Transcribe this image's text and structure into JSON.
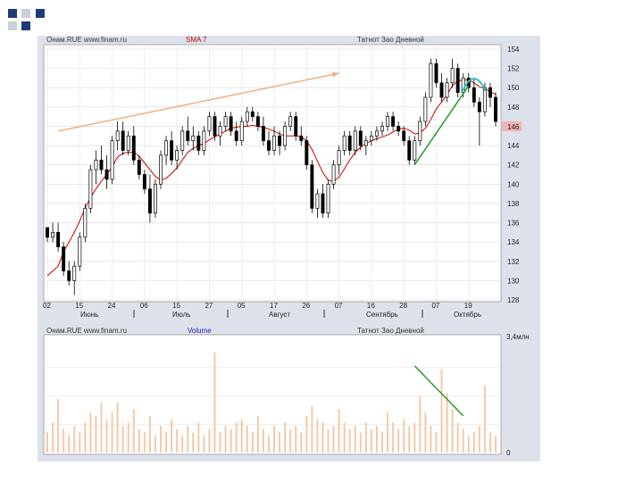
{
  "top_panel": {
    "source": "Онам.RUE  www.finam.ru",
    "indicator": "SMA 7",
    "title": "Татнот Зао Дневной",
    "price_marker": "146"
  },
  "bottom_panel": {
    "source": "Онам.RUE  www.finam.ru",
    "indicator": "Volume",
    "title": "Татнот Зао Дневной",
    "ytop_label": "3,4млн",
    "ybottom_label": "0"
  },
  "colors": {
    "up": "#ffffff",
    "down": "#000000",
    "sma": "#cc0000",
    "volume": "#f5c9a8",
    "trend_up": "#f0b080",
    "trend_green": "#2a9a2a",
    "circle": "#30c0c0",
    "indicator_text": "#c00000",
    "volume_text": "#2020c0",
    "marker_bg": "#f0b4b4",
    "deco": "#1f3a7a"
  },
  "chart_data": [
    {
      "type": "candlestick",
      "yticks": [
        "154",
        "152",
        "150",
        "148",
        "146",
        "144",
        "142",
        "140",
        "138",
        "136",
        "134",
        "132",
        "130",
        "128"
      ],
      "ylim": [
        128,
        154
      ],
      "day_labels": [
        "02",
        "15",
        "24",
        "06",
        "15",
        "27",
        "05",
        "17",
        "26",
        "07",
        "16",
        "28",
        "07",
        "19"
      ],
      "month_labels": [
        "Июнь",
        "Июль",
        "Август",
        "Сентябрь",
        "Октябрь"
      ],
      "series_sma_label": "SMA 7",
      "candles": [
        [
          135.5,
          135.5,
          134.0,
          134.5
        ],
        [
          134.5,
          136.0,
          134.0,
          135.0
        ],
        [
          135.0,
          136.0,
          133.0,
          133.5
        ],
        [
          133.5,
          134.0,
          130.5,
          131.0
        ],
        [
          131.0,
          132.0,
          129.5,
          130.0
        ],
        [
          130.0,
          132.0,
          128.5,
          131.5
        ],
        [
          131.5,
          135.0,
          131.0,
          134.5
        ],
        [
          134.5,
          138.0,
          134.0,
          137.5
        ],
        [
          137.5,
          142.0,
          137.0,
          141.5
        ],
        [
          141.5,
          143.5,
          140.0,
          142.5
        ],
        [
          142.5,
          144.0,
          141.0,
          141.5
        ],
        [
          141.5,
          143.0,
          139.5,
          140.5
        ],
        [
          140.5,
          145.0,
          140.0,
          144.5
        ],
        [
          144.5,
          146.5,
          143.5,
          145.5
        ],
        [
          145.5,
          146.5,
          143.0,
          143.5
        ],
        [
          143.5,
          145.5,
          143.0,
          145.0
        ],
        [
          145.0,
          146.0,
          142.0,
          142.5
        ],
        [
          142.5,
          143.0,
          140.5,
          141.0
        ],
        [
          141.0,
          141.5,
          139.0,
          139.5
        ],
        [
          139.5,
          141.0,
          136.0,
          137.0
        ],
        [
          137.0,
          140.5,
          136.5,
          140.0
        ],
        [
          140.0,
          143.5,
          139.5,
          143.0
        ],
        [
          143.0,
          145.0,
          142.0,
          144.5
        ],
        [
          144.5,
          145.5,
          142.0,
          142.5
        ],
        [
          142.5,
          144.0,
          141.5,
          143.5
        ],
        [
          143.5,
          146.0,
          143.0,
          145.5
        ],
        [
          145.5,
          147.0,
          144.0,
          144.5
        ],
        [
          144.5,
          146.0,
          143.5,
          145.0
        ],
        [
          145.0,
          145.5,
          143.0,
          143.5
        ],
        [
          143.5,
          146.0,
          143.0,
          145.5
        ],
        [
          145.5,
          147.5,
          145.0,
          147.0
        ],
        [
          147.0,
          147.5,
          144.5,
          145.0
        ],
        [
          145.0,
          146.5,
          144.0,
          146.0
        ],
        [
          146.0,
          147.5,
          145.5,
          147.0
        ],
        [
          147.0,
          147.5,
          145.0,
          145.5
        ],
        [
          145.5,
          146.5,
          144.0,
          144.5
        ],
        [
          144.5,
          147.0,
          144.0,
          146.5
        ],
        [
          146.5,
          148.0,
          146.0,
          147.5
        ],
        [
          147.5,
          148.0,
          146.5,
          147.0
        ],
        [
          147.0,
          147.5,
          145.5,
          146.0
        ],
        [
          146.0,
          147.0,
          144.0,
          144.5
        ],
        [
          144.5,
          145.5,
          143.0,
          143.5
        ],
        [
          143.5,
          146.0,
          143.0,
          145.0
        ],
        [
          145.0,
          145.5,
          143.0,
          144.0
        ],
        [
          144.0,
          146.5,
          143.5,
          146.0
        ],
        [
          146.0,
          147.5,
          145.5,
          147.0
        ],
        [
          147.0,
          147.5,
          144.5,
          145.0
        ],
        [
          145.0,
          146.0,
          144.0,
          144.5
        ],
        [
          144.5,
          145.0,
          141.5,
          142.0
        ],
        [
          142.0,
          142.5,
          137.0,
          137.5
        ],
        [
          137.5,
          139.5,
          136.5,
          139.0
        ],
        [
          139.0,
          140.0,
          136.5,
          137.0
        ],
        [
          137.0,
          140.5,
          136.5,
          140.0
        ],
        [
          140.0,
          142.5,
          139.5,
          142.0
        ],
        [
          142.0,
          144.0,
          141.0,
          143.5
        ],
        [
          143.5,
          145.5,
          143.0,
          145.0
        ],
        [
          145.0,
          145.5,
          143.0,
          143.5
        ],
        [
          143.5,
          146.0,
          143.0,
          145.5
        ],
        [
          145.5,
          146.0,
          143.5,
          144.0
        ],
        [
          144.0,
          145.0,
          143.0,
          144.5
        ],
        [
          144.5,
          145.5,
          144.0,
          145.0
        ],
        [
          145.0,
          146.0,
          144.5,
          145.5
        ],
        [
          145.5,
          146.5,
          145.0,
          146.0
        ],
        [
          146.0,
          147.5,
          145.5,
          147.0
        ],
        [
          147.0,
          147.5,
          145.5,
          146.0
        ],
        [
          146.0,
          146.5,
          145.0,
          145.5
        ],
        [
          145.5,
          146.0,
          144.0,
          144.5
        ],
        [
          144.5,
          145.0,
          142.0,
          142.5
        ],
        [
          142.5,
          145.0,
          142.0,
          144.5
        ],
        [
          144.5,
          147.0,
          144.0,
          146.5
        ],
        [
          146.5,
          149.5,
          146.0,
          149.0
        ],
        [
          149.0,
          153.0,
          148.5,
          152.5
        ],
        [
          152.5,
          153.0,
          150.0,
          150.5
        ],
        [
          150.5,
          151.5,
          148.5,
          149.0
        ],
        [
          149.0,
          151.0,
          148.5,
          150.5
        ],
        [
          150.5,
          153.0,
          150.0,
          152.0
        ],
        [
          152.0,
          152.5,
          149.0,
          149.5
        ],
        [
          149.5,
          151.5,
          149.0,
          151.0
        ],
        [
          151.0,
          151.5,
          149.5,
          150.0
        ],
        [
          150.0,
          151.0,
          148.0,
          148.5
        ],
        [
          148.5,
          149.0,
          144.0,
          147.5
        ],
        [
          147.5,
          150.5,
          147.0,
          150.0
        ],
        [
          150.0,
          150.5,
          148.0,
          149.0
        ],
        [
          149.0,
          149.5,
          146.0,
          146.5
        ]
      ],
      "sma": [
        130.5,
        131.0,
        131.5,
        133.0,
        134.0,
        135.0,
        136.2,
        137.5,
        138.6,
        139.5,
        140.3,
        141.0,
        141.8,
        142.8,
        143.2,
        143.3,
        143.3,
        142.9,
        142.2,
        141.5,
        140.8,
        140.4,
        140.6,
        141.1,
        141.7,
        142.5,
        143.3,
        143.7,
        144.0,
        144.2,
        144.6,
        144.9,
        145.2,
        145.5,
        145.8,
        145.9,
        146.0,
        146.0,
        146.1,
        146.0,
        145.9,
        145.7,
        145.5,
        145.2,
        145.0,
        145.0,
        145.0,
        144.9,
        144.5,
        143.6,
        142.4,
        141.2,
        140.4,
        140.3,
        140.7,
        141.6,
        142.5,
        143.3,
        143.8,
        144.2,
        144.5,
        144.7,
        144.9,
        145.1,
        145.4,
        145.7,
        145.8,
        145.6,
        145.2,
        145.3,
        145.8,
        146.7,
        147.8,
        148.5,
        149.3,
        150.2,
        150.7,
        150.8,
        150.8,
        150.5,
        150.1,
        149.9,
        149.6,
        149.3
      ],
      "annotations": [
        {
          "kind": "trend_line",
          "color": "trend_up",
          "from": [
            2,
            145.5
          ],
          "to": [
            54,
            151.5
          ],
          "arrow": true
        },
        {
          "kind": "trend_line",
          "color": "trend_green",
          "from": [
            68,
            142.0
          ],
          "to": [
            78,
            150.2
          ]
        },
        {
          "kind": "arc",
          "color": "circle",
          "at": [
            79,
            150.2
          ]
        }
      ]
    },
    {
      "type": "bar",
      "title": "Volume",
      "ylim": [
        0,
        3.4
      ],
      "values": [
        0.6,
        0.9,
        1.6,
        0.7,
        0.5,
        0.8,
        0.6,
        0.9,
        1.2,
        1.1,
        1.5,
        1.0,
        1.2,
        1.5,
        0.8,
        0.9,
        1.3,
        0.7,
        0.6,
        1.1,
        0.5,
        0.8,
        0.6,
        1.0,
        0.7,
        0.5,
        0.8,
        0.6,
        0.9,
        0.5,
        0.7,
        3.0,
        0.6,
        0.8,
        0.7,
        0.9,
        1.0,
        0.8,
        0.6,
        1.1,
        0.7,
        0.5,
        0.8,
        0.6,
        0.9,
        0.7,
        0.8,
        0.6,
        1.1,
        1.4,
        1.0,
        0.9,
        0.7,
        0.8,
        1.3,
        0.9,
        0.7,
        0.8,
        0.6,
        0.9,
        0.7,
        0.8,
        0.6,
        1.2,
        0.9,
        0.7,
        1.0,
        0.8,
        0.9,
        1.7,
        1.2,
        0.8,
        0.6,
        2.5,
        1.8,
        1.3,
        0.9,
        0.7,
        0.5,
        0.6,
        0.8,
        2.0,
        0.6,
        0.5
      ],
      "annotations": [
        {
          "kind": "trend_line",
          "color": "trend_green",
          "from": [
            68,
            2.6
          ],
          "to": [
            77,
            1.1
          ]
        }
      ]
    }
  ]
}
